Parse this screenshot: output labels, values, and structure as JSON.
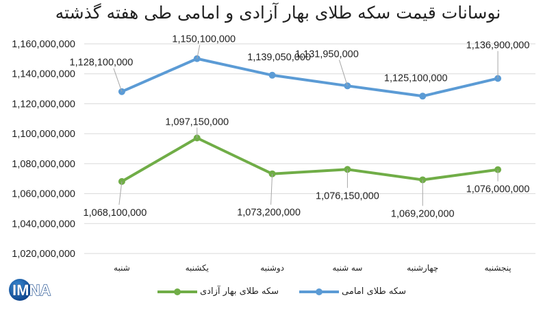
{
  "title": "نوسانات قیمت سکه طلای بهار آزادی و امامی طی هفته گذشته",
  "colors": {
    "emami": "#5b9bd5",
    "bahar": "#70ad47",
    "grid": "#d9d9d9",
    "leader": "#a6a6a6"
  },
  "legend": [
    {
      "label": "سکه طلای امامی",
      "color": "#5b9bd5"
    },
    {
      "label": "سکه طلای بهار آزادی",
      "color": "#70ad47"
    }
  ],
  "logo": {
    "text": "IMNA"
  },
  "chart_data": {
    "type": "line",
    "title": "نوسانات قیمت سکه طلای بهار آزادی و امامی طی هفته گذشته",
    "xlabel": "",
    "ylabel": "",
    "categories": [
      "شنبه",
      "یکشنبه",
      "دوشنبه",
      "سه شنبه",
      "چهارشنبه",
      "پنجشنبه"
    ],
    "y_ticks": [
      "1,020,000,000",
      "1,040,000,000",
      "1,060,000,000",
      "1,080,000,000",
      "1,100,000,000",
      "1,120,000,000",
      "1,140,000,000",
      "1,160,000,000"
    ],
    "ylim": [
      1020000000,
      1160000000
    ],
    "grid": true,
    "legend_position": "bottom",
    "series": [
      {
        "name": "سکه طلای امامی",
        "color": "#5b9bd5",
        "values": [
          1128100000,
          1150100000,
          1139050000,
          1131950000,
          1125100000,
          1136900000
        ],
        "labels": [
          "1,128,100,000",
          "1,150,100,000",
          "1,139,050,000",
          "1,131,950,000",
          "1,125,100,000",
          "1,136,900,000"
        ]
      },
      {
        "name": "سکه طلای بهار آزادی",
        "color": "#70ad47",
        "values": [
          1068100000,
          1097150000,
          1073200000,
          1076150000,
          1069200000,
          1076000000
        ],
        "labels": [
          "1,068,100,000",
          "1,097,150,000",
          "1,073,200,000",
          "1,076,150,000",
          "1,069,200,000",
          "1,076,000,000"
        ]
      }
    ]
  }
}
